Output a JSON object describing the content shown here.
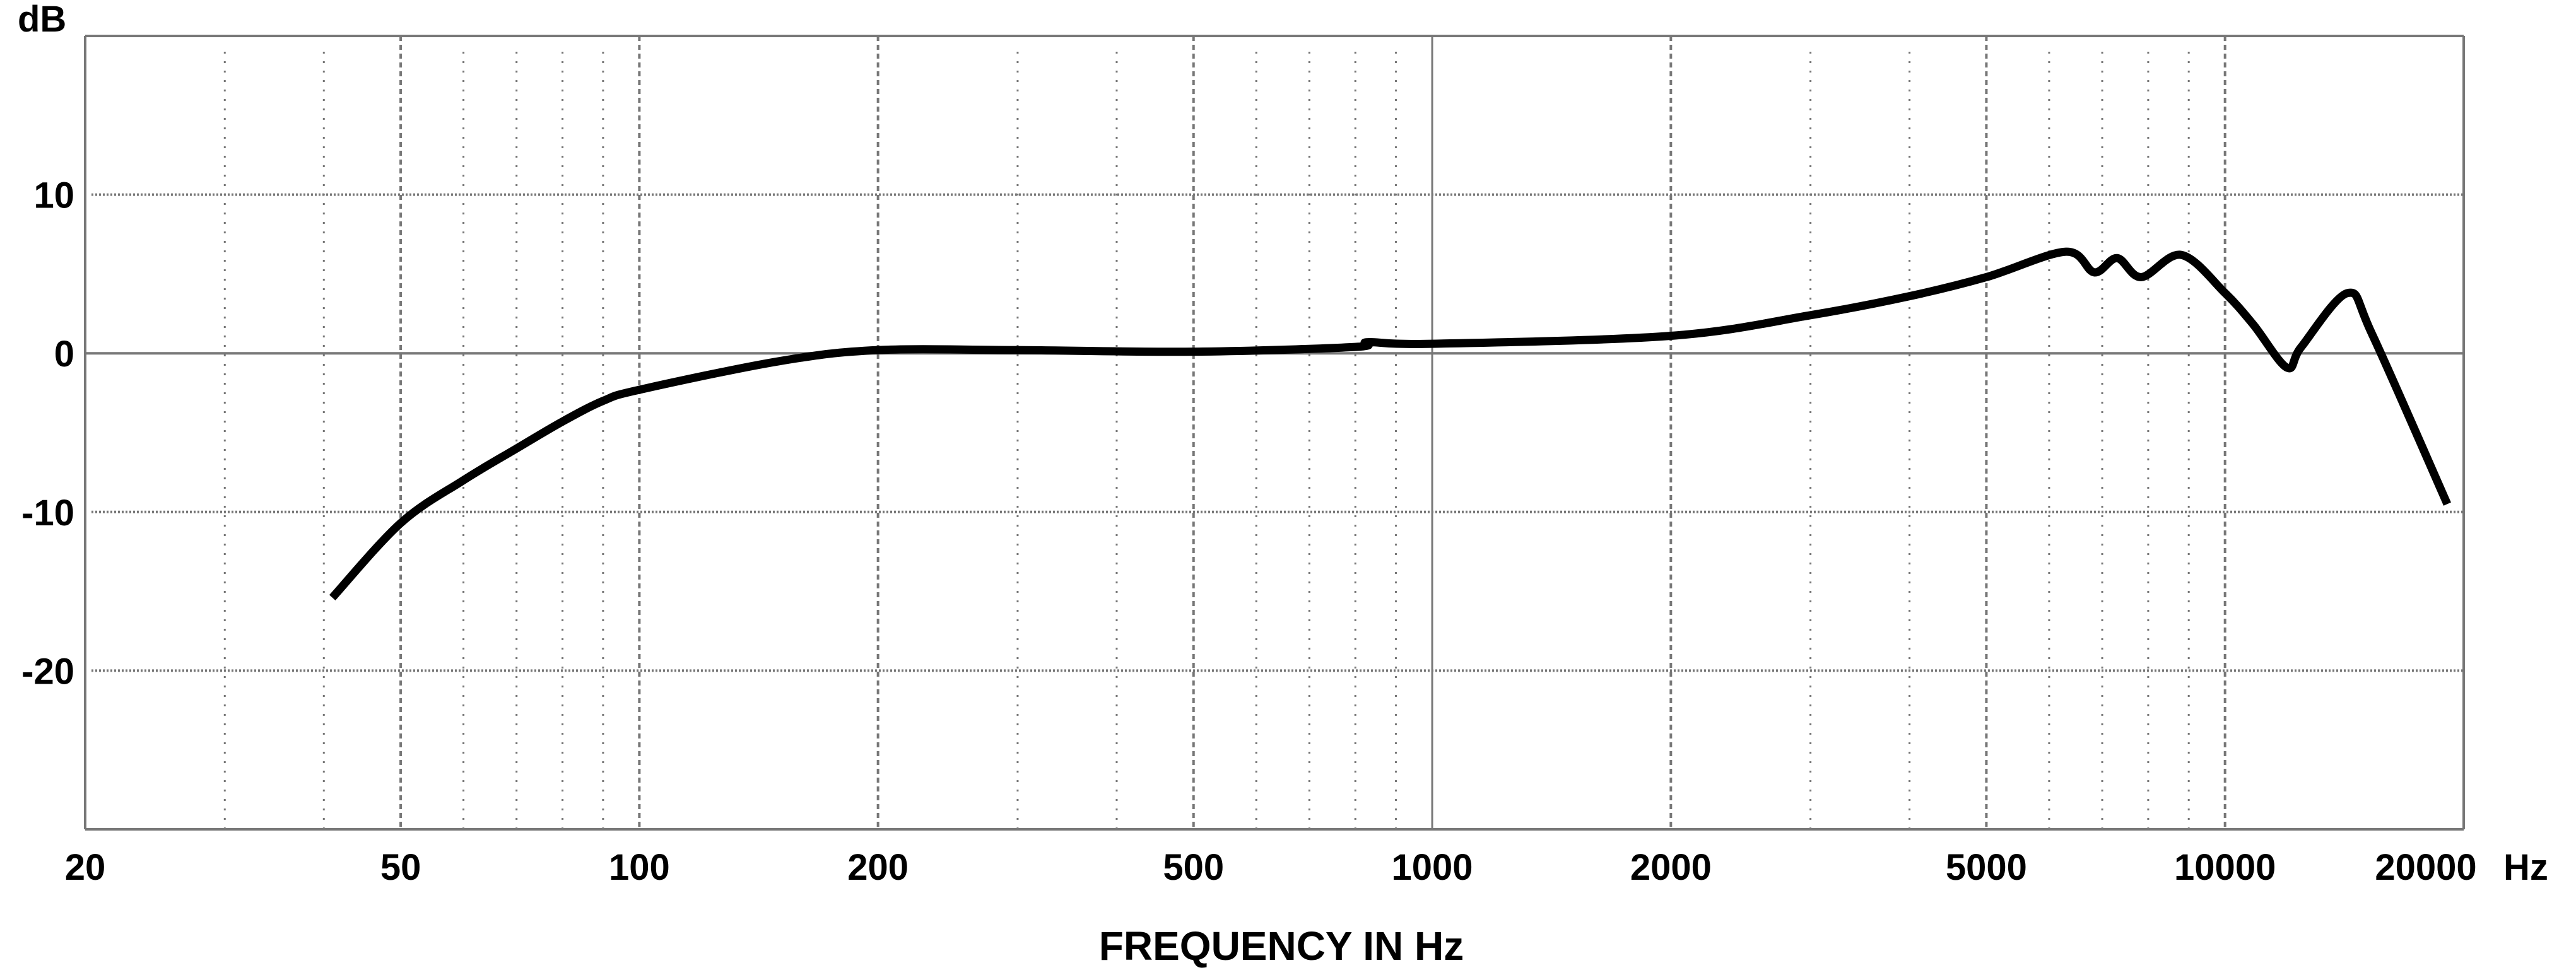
{
  "chart_data": {
    "type": "line",
    "title": "",
    "xlabel": "FREQUENCY IN Hz",
    "ylabel": "dB",
    "x_unit_label": "Hz",
    "x_scale": "log",
    "xlim": [
      20,
      20000
    ],
    "ylim": [
      -30,
      20
    ],
    "x_ticks": [
      20,
      50,
      100,
      200,
      500,
      1000,
      2000,
      5000,
      10000,
      20000
    ],
    "x_tick_labels": [
      "20",
      "50",
      "100",
      "200",
      "500",
      "1000",
      "2000",
      "5000",
      "10000",
      "20000"
    ],
    "y_ticks": [
      10,
      0,
      -10,
      -20
    ],
    "y_tick_labels": [
      "10",
      "0",
      "-10",
      "-20"
    ],
    "grid": true,
    "line_color": "#000000",
    "grid_color": "#777777",
    "series": [
      {
        "x": [
          41,
          50,
          60,
          70,
          80,
          90,
          100,
          150,
          200,
          300,
          500,
          800,
          830,
          1000,
          2000,
          3000,
          4000,
          5000,
          6300,
          6840,
          7310,
          7840,
          8810,
          10000,
          10860,
          11970,
          12480,
          14280,
          15330,
          19070
        ],
        "y": [
          -15.4,
          -10.7,
          -8.0,
          -6.0,
          -4.3,
          -3.0,
          -2.3,
          -0.5,
          0.2,
          0.2,
          0.1,
          0.4,
          0.7,
          0.6,
          1.1,
          2.4,
          3.6,
          4.8,
          6.4,
          5.1,
          6.0,
          4.8,
          6.2,
          3.8,
          1.8,
          -0.9,
          0.4,
          3.8,
          1.2,
          -9.5
        ]
      }
    ]
  }
}
